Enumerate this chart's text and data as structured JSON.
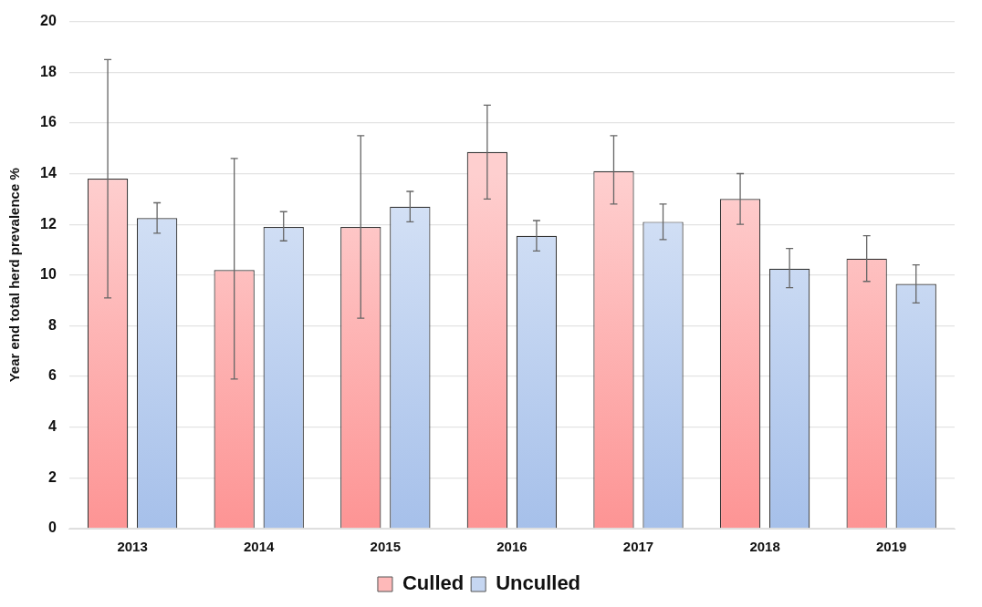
{
  "chart_data": {
    "type": "bar",
    "ylabel": "Year end total herd prevalence %",
    "categories": [
      "2013",
      "2014",
      "2015",
      "2016",
      "2017",
      "2018",
      "2019"
    ],
    "series": [
      {
        "name": "Culled",
        "color": "#fd9494",
        "values": [
          13.8,
          10.2,
          11.9,
          14.85,
          14.1,
          13.0,
          10.65
        ],
        "errors": [
          [
            9.1,
            18.5
          ],
          [
            5.9,
            14.6
          ],
          [
            8.3,
            15.5
          ],
          [
            13.0,
            16.7
          ],
          [
            12.8,
            15.5
          ],
          [
            12.0,
            14.0
          ],
          [
            9.75,
            11.55
          ]
        ]
      },
      {
        "name": "Unculled",
        "color": "#a6c0ea",
        "values": [
          12.25,
          11.9,
          12.7,
          11.55,
          12.1,
          10.25,
          9.65
        ],
        "errors": [
          [
            11.65,
            12.85
          ],
          [
            11.35,
            12.5
          ],
          [
            12.1,
            13.3
          ],
          [
            10.95,
            12.15
          ],
          [
            11.4,
            12.8
          ],
          [
            9.5,
            11.05
          ],
          [
            8.9,
            10.4
          ]
        ]
      }
    ],
    "ylim": [
      0,
      20
    ],
    "yticks": [
      0,
      2,
      4,
      6,
      8,
      10,
      12,
      14,
      16,
      18,
      20
    ],
    "grid": "y",
    "legend": "bottom"
  }
}
